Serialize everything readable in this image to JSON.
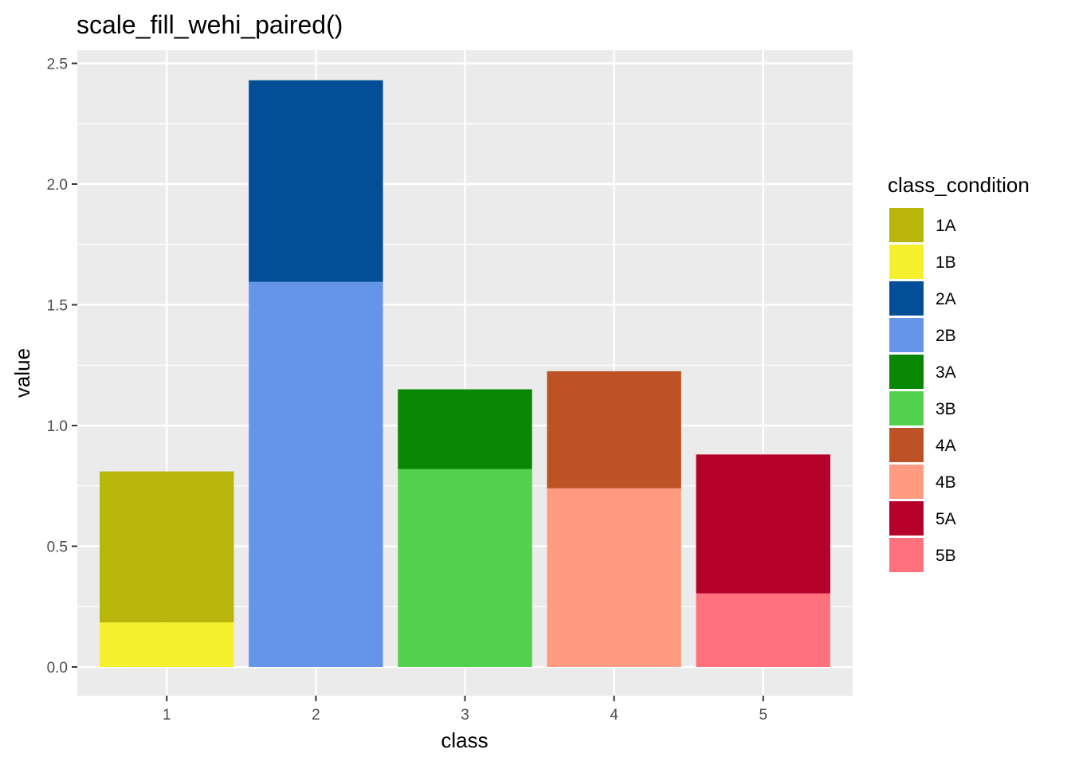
{
  "chart_data": {
    "type": "bar",
    "stacked": true,
    "title": "scale_fill_wehi_paired()",
    "xlabel": "class",
    "ylabel": "value",
    "categories": [
      "1",
      "2",
      "3",
      "4",
      "5"
    ],
    "ylim": [
      -0.11,
      2.6
    ],
    "yticks": [
      0.0,
      0.5,
      1.0,
      1.5,
      2.0,
      2.5
    ],
    "ytick_labels": [
      "0.0",
      "0.5",
      "1.0",
      "1.5",
      "2.0",
      "2.5"
    ],
    "grid": true,
    "legend": {
      "title": "class_condition",
      "placement": "right",
      "entries": [
        {
          "label": "1A",
          "color": "#B8B50B"
        },
        {
          "label": "1B",
          "color": "#F5F02E"
        },
        {
          "label": "2A",
          "color": "#034E97"
        },
        {
          "label": "2B",
          "color": "#6595E8"
        },
        {
          "label": "3A",
          "color": "#078703"
        },
        {
          "label": "3B",
          "color": "#52D14F"
        },
        {
          "label": "4A",
          "color": "#BD5226"
        },
        {
          "label": "4B",
          "color": "#FF9B80"
        },
        {
          "label": "5A",
          "color": "#B5002A"
        },
        {
          "label": "5B",
          "color": "#FF717C"
        }
      ]
    },
    "bars": [
      {
        "category": "1",
        "segments": [
          {
            "label": "1B",
            "value": 0.185
          },
          {
            "label": "1A",
            "value": 0.625
          }
        ]
      },
      {
        "category": "2",
        "segments": [
          {
            "label": "2B",
            "value": 1.595
          },
          {
            "label": "2A",
            "value": 0.835
          }
        ]
      },
      {
        "category": "3",
        "segments": [
          {
            "label": "3B",
            "value": 0.82
          },
          {
            "label": "3A",
            "value": 0.33
          }
        ]
      },
      {
        "category": "4",
        "segments": [
          {
            "label": "4B",
            "value": 0.74
          },
          {
            "label": "4A",
            "value": 0.485
          }
        ]
      },
      {
        "category": "5",
        "segments": [
          {
            "label": "5B",
            "value": 0.305
          },
          {
            "label": "5A",
            "value": 0.575
          }
        ]
      }
    ]
  }
}
